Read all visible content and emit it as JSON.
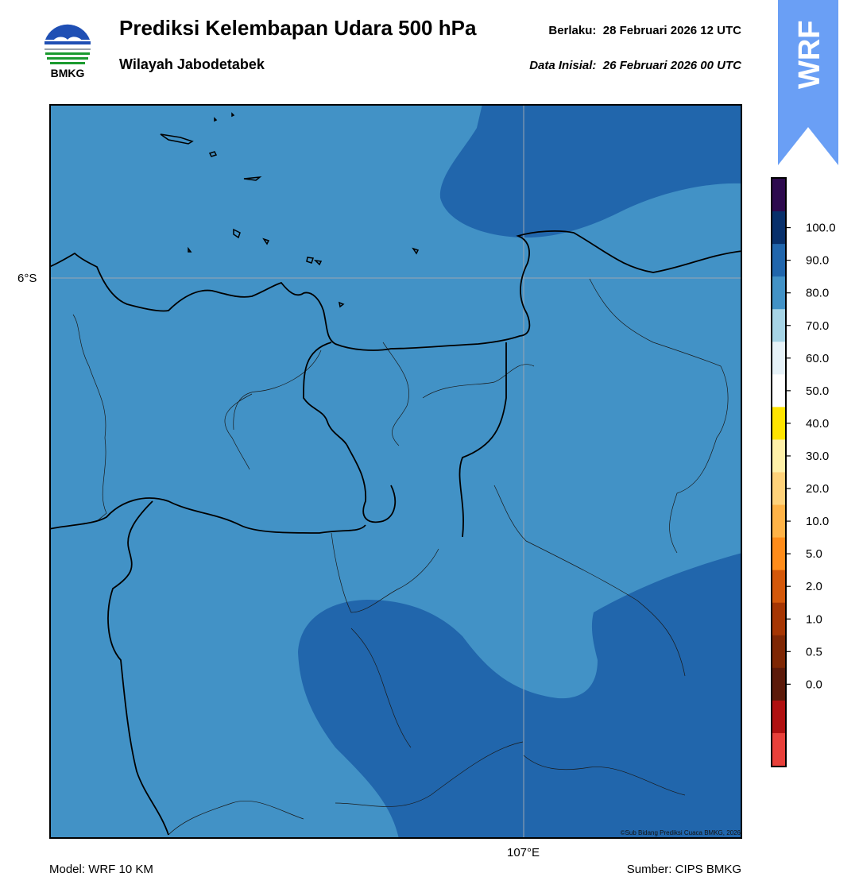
{
  "header": {
    "logo_text": "BMKG",
    "title": "Prediksi Kelembapan Udara 500 hPa",
    "subtitle": "Wilayah Jabodetabek",
    "valid_label": "Berlaku:",
    "valid_time": "28 Februari 2026 12 UTC",
    "init_label": "Data Inisial:",
    "init_time": "26 Februari 2026 00 UTC"
  },
  "map": {
    "lat_label": "6°S",
    "lon_label": "107°E",
    "credit": "©Sub Bidang Prediksi Cuaca BMKG, 2026",
    "colors": {
      "band_70_80": "#4292c6",
      "band_80_90": "#2166ac",
      "province_border": "#000000",
      "regency_border": "#1a1a1a",
      "gridline": "#9aa6b2"
    }
  },
  "badge": {
    "text": "WRF",
    "color": "#6a9ff5"
  },
  "colorbar": {
    "ticks": [
      "100.0",
      "90.0",
      "80.0",
      "70.0",
      "60.0",
      "50.0",
      "40.0",
      "30.0",
      "20.0",
      "10.0",
      "5.0",
      "2.0",
      "1.0",
      "0.5",
      "0.0"
    ],
    "colors": [
      "#2d0a4e",
      "#08306b",
      "#2166ac",
      "#4292c6",
      "#a6d4e6",
      "#e6f2f8",
      "#ffffff",
      "#ffe400",
      "#fff0a8",
      "#ffd27a",
      "#ffb347",
      "#ff8c1a",
      "#d4580a",
      "#a63603",
      "#7f2704",
      "#5c1a0a",
      "#b01010",
      "#e8403a"
    ]
  },
  "footer": {
    "model": "Model: WRF 10 KM",
    "source": "Sumber: CIPS BMKG"
  }
}
